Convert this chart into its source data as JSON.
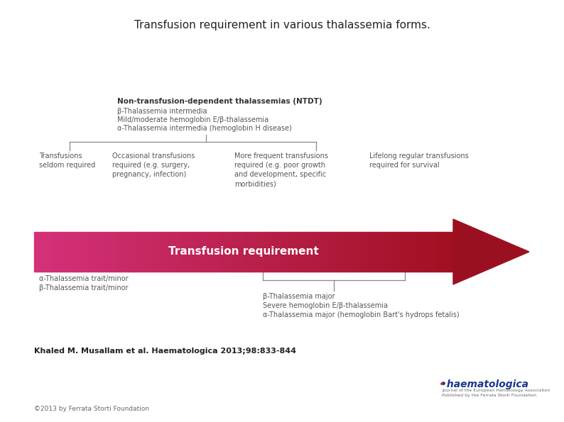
{
  "title": "Transfusion requirement in various thalassemia forms.",
  "title_fontsize": 11,
  "background_color": "#ffffff",
  "arrow_body_color_left": "#d4317a",
  "arrow_body_color_right": "#a01020",
  "arrow_head_color": "#9b1020",
  "arrow_text": "Transfusion requirement",
  "arrow_text_color": "#ffffff",
  "arrow_text_fontsize": 11,
  "top_box_label_line1": "Non-transfusion-dependent thalassemias (NTDT)",
  "top_box_label_line2": "β-Thalassemia intermedia",
  "top_box_label_line3": "Mild/moderate hemoglobin E/β-thalassemia",
  "top_box_label_line4": "α-Thalassemia intermedia (hemoglobin H disease)",
  "col1_text": "Transfusions\nseldom required",
  "col2_text": "Occasional transfusions\nrequired (e.g. surgery,\npregnancy, infection)",
  "col3_text": "More frequent transfusions\nrequired (e.g. poor growth\nand development, specific\nmorbidities)",
  "col4_text": "Lifelong regular transfusions\nrequired for survival",
  "text_fontsize": 7,
  "text_color": "#555555",
  "line_color": "#888888",
  "bottom_right_text": "β-Thalassemia major\nSevere hemoglobin E/β-thalassemia\nα-Thalassemia major (hemoglobin Bart's hydrops fetalis)",
  "bottom_left_text": "α-Thalassemia trait/minor\nβ-Thalassemia trait/minor",
  "citation_text": "Khaled M. Musallam et al. Haematologica 2013;98:833-844",
  "citation_fontsize": 8,
  "footer_text": "©2013 by Ferrata Storti Foundation",
  "footer_fontsize": 6.5
}
